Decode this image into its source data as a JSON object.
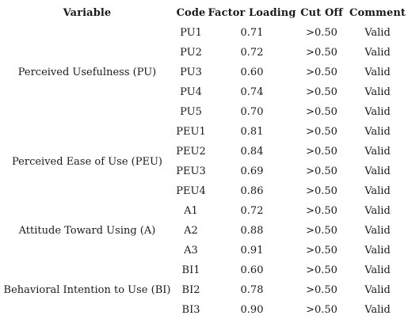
{
  "table": {
    "headers": [
      "Variable",
      "Code",
      "Factor Loading",
      "Cut Off",
      "Comment"
    ],
    "groups": [
      {
        "variable": "Perceived Usefulness (PU)",
        "rows": [
          {
            "code": "PU1",
            "loading": "0.71",
            "cutoff": ">0.50",
            "comment": "Valid"
          },
          {
            "code": "PU2",
            "loading": "0.72",
            "cutoff": ">0.50",
            "comment": "Valid"
          },
          {
            "code": "PU3",
            "loading": "0.60",
            "cutoff": ">0.50",
            "comment": "Valid"
          },
          {
            "code": "PU4",
            "loading": "0.74",
            "cutoff": ">0.50",
            "comment": "Valid"
          },
          {
            "code": "PU5",
            "loading": "0.70",
            "cutoff": ">0.50",
            "comment": "Valid"
          }
        ]
      },
      {
        "variable": "Perceived Ease of Use (PEU)",
        "rows": [
          {
            "code": "PEU1",
            "loading": "0.81",
            "cutoff": ">0.50",
            "comment": "Valid"
          },
          {
            "code": "PEU2",
            "loading": "0.84",
            "cutoff": ">0.50",
            "comment": "Valid"
          },
          {
            "code": "PEU3",
            "loading": "0.69",
            "cutoff": ">0.50",
            "comment": "Valid"
          },
          {
            "code": "PEU4",
            "loading": "0.86",
            "cutoff": ">0.50",
            "comment": "Valid"
          }
        ]
      },
      {
        "variable": "Attitude Toward Using (A)",
        "rows": [
          {
            "code": "A1",
            "loading": "0.72",
            "cutoff": ">0.50",
            "comment": "Valid"
          },
          {
            "code": "A2",
            "loading": "0.88",
            "cutoff": ">0.50",
            "comment": "Valid"
          },
          {
            "code": "A3",
            "loading": "0.91",
            "cutoff": ">0.50",
            "comment": "Valid"
          }
        ]
      },
      {
        "variable": "Behavioral Intention to Use (BI)",
        "rows": [
          {
            "code": "BI1",
            "loading": "0.60",
            "cutoff": ">0.50",
            "comment": "Valid"
          },
          {
            "code": "BI2",
            "loading": "0.78",
            "cutoff": ">0.50",
            "comment": "Valid"
          },
          {
            "code": "BI3",
            "loading": "0.90",
            "cutoff": ">0.50",
            "comment": "Valid"
          }
        ]
      }
    ]
  }
}
